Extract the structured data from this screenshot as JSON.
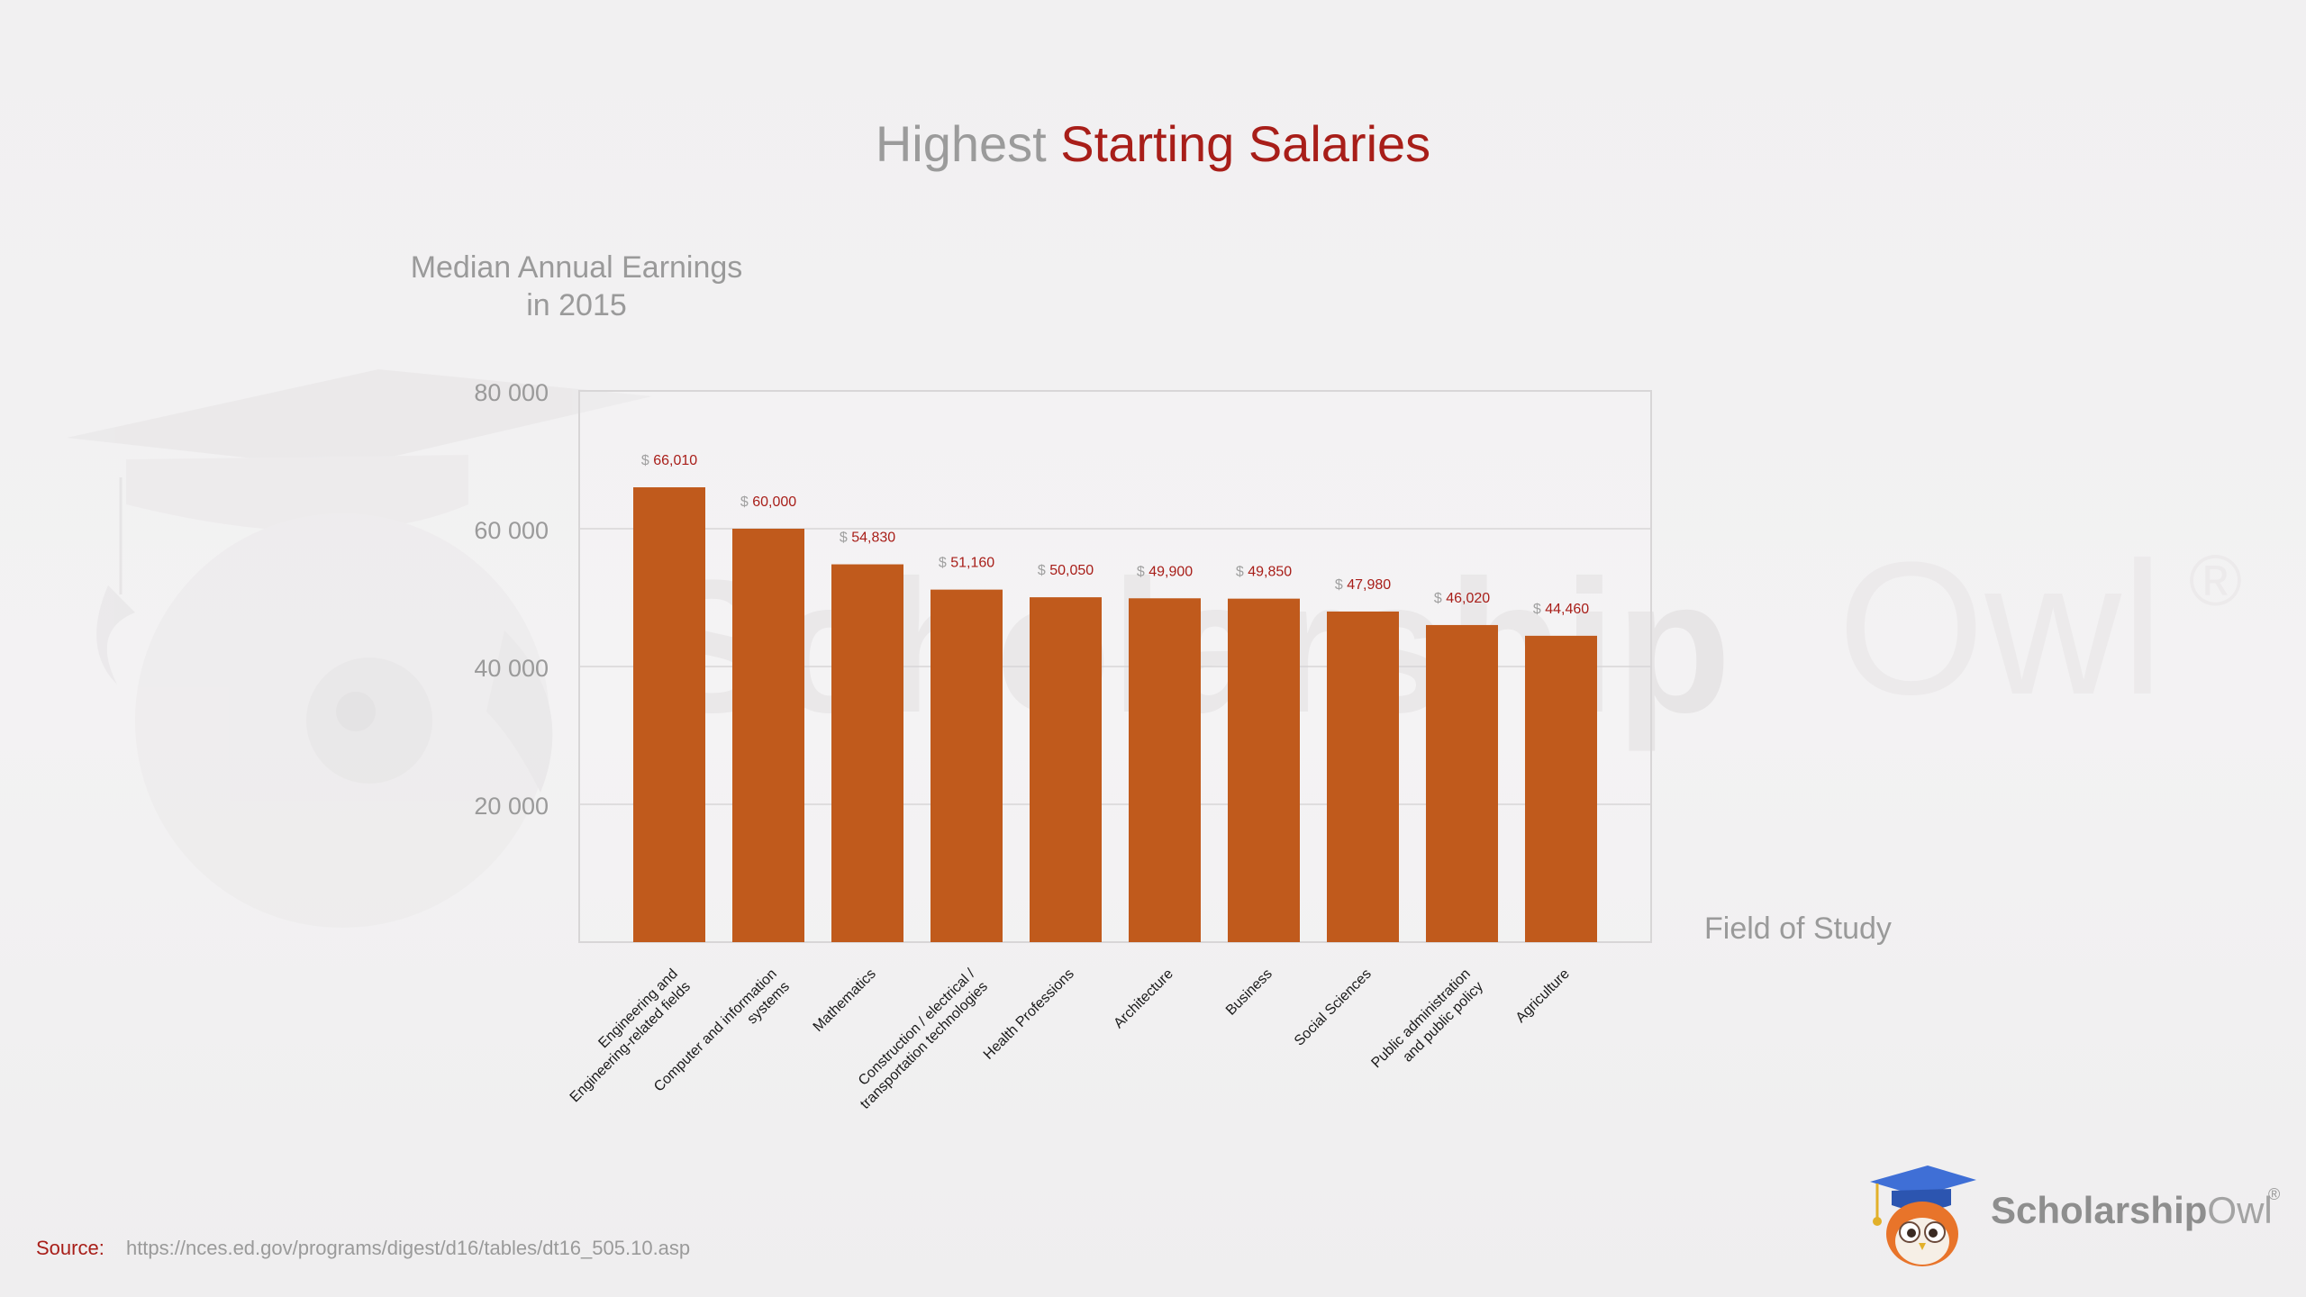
{
  "header": {
    "title_plain": "Highest",
    "title_accent": "Starting Salaries"
  },
  "watermark": {
    "brand_bold": "Scholarship",
    "brand_light": "Owl",
    "registered": "®"
  },
  "source": {
    "label": "Source:",
    "url": "https://nces.ed.gov/programs/digest/d16/tables/dt16_505.10.asp"
  },
  "logo": {
    "brand_bold": "Scholarship",
    "brand_light": "Owl",
    "registered": "®",
    "icon": "owl-graduate-icon"
  },
  "colors": {
    "bar": "#c05a1c",
    "accent": "#a81e19",
    "axis_text": "#9a9a9a",
    "grid": "#d8d6d7"
  },
  "chart_data": {
    "type": "bar",
    "title": "Highest Starting Salaries",
    "ylabel": "Median Annual Earnings in 2015",
    "ylabel_lines": [
      "Median Annual Earnings",
      "in 2015"
    ],
    "xlabel": "Field of Study",
    "ylim": [
      0,
      80000
    ],
    "yticks": [
      20000,
      40000,
      60000,
      80000
    ],
    "ytick_labels": [
      "20 000",
      "40 000",
      "60 000",
      "80 000"
    ],
    "grid": true,
    "categories": [
      [
        "Engineering and",
        "Engineering-related fields"
      ],
      [
        "Computer and information",
        "systems"
      ],
      [
        "Mathematics"
      ],
      [
        "Construction / electrical /",
        "transportation technologies"
      ],
      [
        "Health Professions"
      ],
      [
        "Architecture"
      ],
      [
        "Business"
      ],
      [
        "Social Sciences"
      ],
      [
        "Public administration",
        "and public policy"
      ],
      [
        "Agriculture"
      ]
    ],
    "values": [
      66010,
      60000,
      54830,
      51160,
      50050,
      49900,
      49850,
      47980,
      46020,
      44460
    ],
    "value_prefix": "$",
    "value_labels": [
      "66,010",
      "60,000",
      "54,830",
      "51,160",
      "50,050",
      "49,900",
      "49,850",
      "47,980",
      "46,020",
      "44,460"
    ]
  }
}
